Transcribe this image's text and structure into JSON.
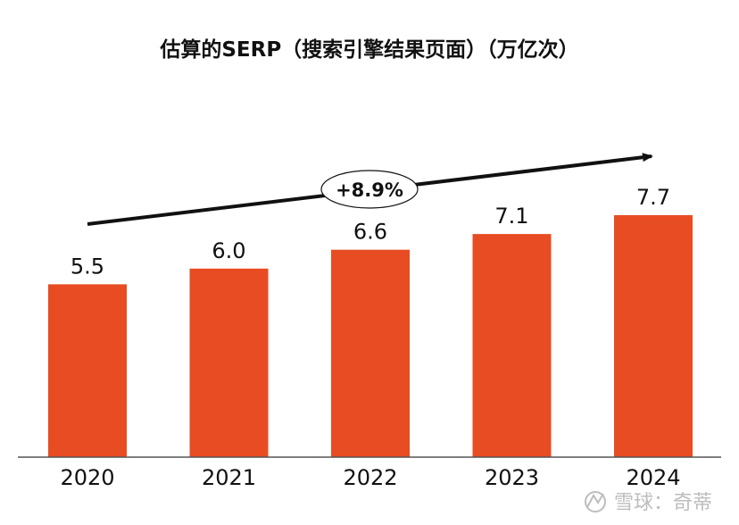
{
  "chart_data": {
    "type": "bar",
    "title": "估算的SERP（搜索引擎结果页面）（万亿次）",
    "categories": [
      "2020",
      "2021",
      "2022",
      "2023",
      "2024"
    ],
    "values": [
      5.5,
      6.0,
      6.6,
      7.1,
      7.7
    ],
    "value_labels": [
      "5.5",
      "6.0",
      "6.6",
      "7.1",
      "7.7"
    ],
    "xlabel": "",
    "ylabel": "",
    "ylim": [
      0,
      7.7
    ],
    "grid": false,
    "legend": "none",
    "bar_color": "#e84c22",
    "annotation": {
      "label": "+8.9%",
      "meaning": "growth rate"
    }
  },
  "watermark": {
    "label": "雪球：奇蒂",
    "icon": "snowball-logo-icon"
  },
  "colors": {
    "bar": "#e84c22",
    "text": "#111111",
    "axis": "#555555",
    "watermark": "#bdbdbd"
  }
}
